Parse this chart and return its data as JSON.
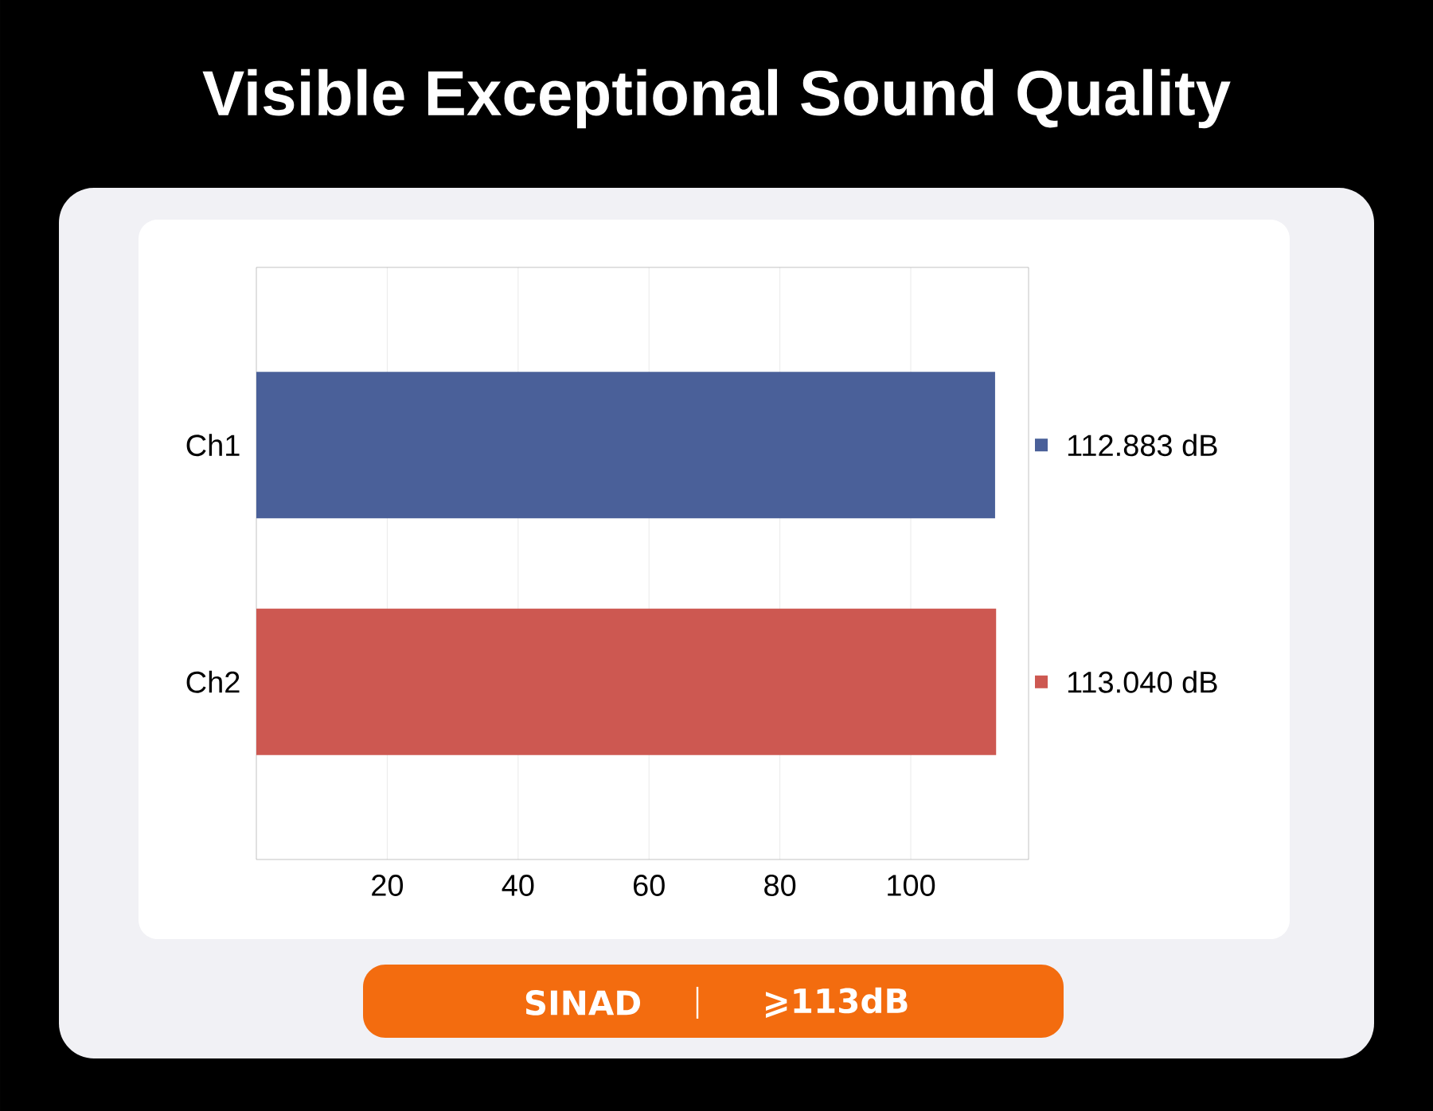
{
  "chart_data": {
    "type": "bar",
    "orientation": "horizontal",
    "title": "Visible Exceptional Sound Quality",
    "categories": [
      "Ch1",
      "Ch2"
    ],
    "values": [
      112.883,
      113.04
    ],
    "colors": [
      "#4a6099",
      "#cd5851"
    ],
    "value_labels": [
      "112.883 dB",
      "113.040 dB"
    ],
    "xlim": [
      0,
      118
    ],
    "xticks": [
      20,
      40,
      60,
      80,
      100
    ],
    "grid": "x",
    "annotations": [
      "SINAD",
      "⩾113dB"
    ]
  }
}
